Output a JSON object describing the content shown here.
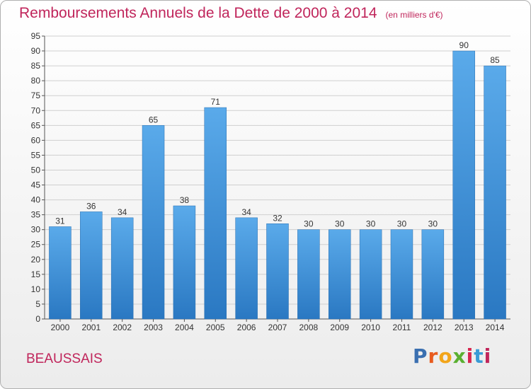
{
  "title": "Remboursements Annuels de la Dette de 2000 à 2014",
  "unit": "(en milliers d'€)",
  "location": "BEAUSSAIS",
  "brand": {
    "text": "Proxiti",
    "colors": [
      "#3a6fb0",
      "#e85b1e",
      "#f2a51a",
      "#5ab031",
      "#d7264f",
      "#3a9bd6",
      "#c0255b"
    ]
  },
  "colors": {
    "bar": "#4c9de0",
    "bar_dark": "#2f7fc8",
    "title": "#c0255b",
    "grid": "#cfcfcf"
  },
  "chart_data": {
    "type": "bar",
    "categories": [
      "2000",
      "2001",
      "2002",
      "2003",
      "2004",
      "2005",
      "2006",
      "2007",
      "2008",
      "2009",
      "2010",
      "2011",
      "2012",
      "2013",
      "2014"
    ],
    "values": [
      31,
      36,
      34,
      65,
      38,
      71,
      34,
      32,
      30,
      30,
      30,
      30,
      30,
      90,
      85
    ],
    "ylim": [
      0,
      95
    ],
    "yticks": [
      0,
      5,
      10,
      15,
      20,
      25,
      30,
      35,
      40,
      45,
      50,
      55,
      60,
      65,
      70,
      75,
      80,
      85,
      90,
      95
    ],
    "grid": true
  }
}
